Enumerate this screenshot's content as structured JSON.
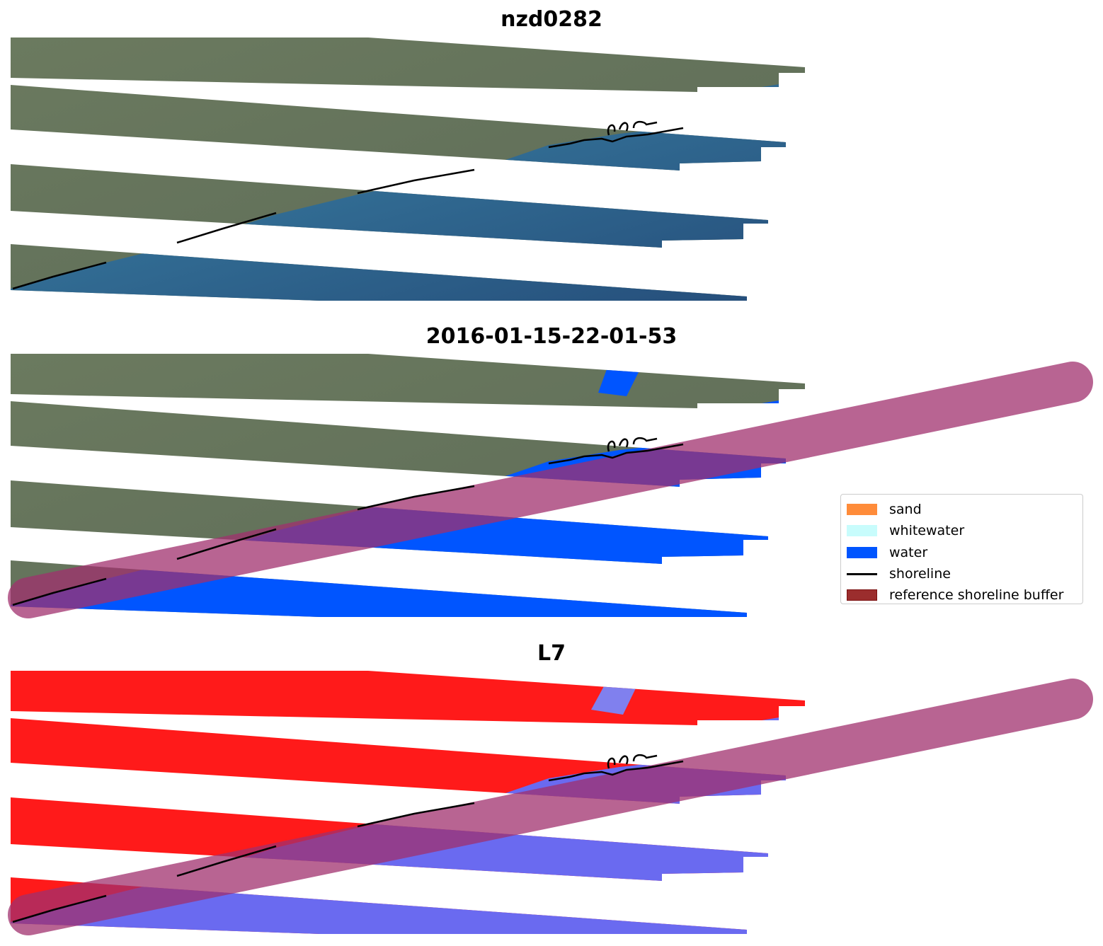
{
  "panels": [
    {
      "title": "nzd0282",
      "type": "rgb"
    },
    {
      "title": "2016-01-15-22-01-53",
      "type": "classified"
    },
    {
      "title": "L7",
      "type": "index"
    }
  ],
  "legend": {
    "items": [
      {
        "label": "sand",
        "color": "#ff8c3a"
      },
      {
        "label": "whitewater",
        "color": "#c8fcfc"
      },
      {
        "label": "water",
        "color": "#0055ff"
      },
      {
        "label": "shoreline",
        "color": "#000000"
      },
      {
        "label": "reference shoreline buffer",
        "color": "#9b2d2d"
      }
    ]
  }
}
